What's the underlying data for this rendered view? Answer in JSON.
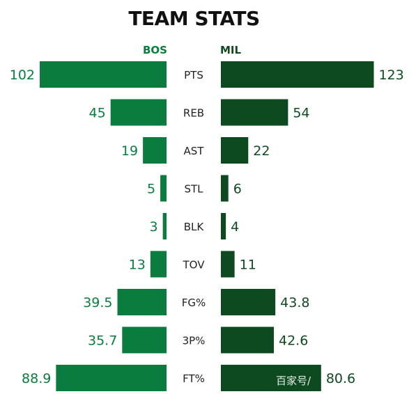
{
  "chart_data": {
    "type": "bar",
    "title": "TEAM STATS",
    "categories": [
      "PTS",
      "REB",
      "AST",
      "STL",
      "BLK",
      "TOV",
      "FG%",
      "3P%",
      "FT%"
    ],
    "series": [
      {
        "name": "BOS",
        "values": [
          102,
          45,
          19,
          5,
          3,
          13,
          39.5,
          35.7,
          88.9
        ],
        "value_labels": [
          "102",
          "45",
          "19",
          "5",
          "3",
          "13",
          "39.5",
          "35.7",
          "88.9"
        ]
      },
      {
        "name": "MIL",
        "values": [
          123,
          54,
          22,
          6,
          4,
          11,
          43.8,
          42.6,
          80.6
        ],
        "value_labels": [
          "123",
          "54",
          "22",
          "6",
          "4",
          "11",
          "43.8",
          "42.6",
          "80.6"
        ]
      }
    ],
    "orientation": "diverging-horizontal",
    "grid": false,
    "legend": "top-center"
  },
  "colors": {
    "bos": "#0a7d3e",
    "mil": "#0e4a1f"
  },
  "watermark": "百家号/"
}
